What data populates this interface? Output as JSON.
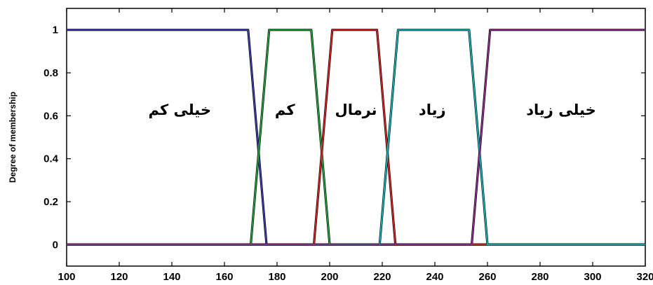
{
  "chart_data": {
    "type": "line",
    "title": "",
    "xlabel": "",
    "ylabel": "Degree of membership",
    "xlim": [
      100,
      320
    ],
    "ylim": [
      -0.1,
      1.1
    ],
    "x_ticks": [
      100,
      120,
      140,
      160,
      180,
      200,
      220,
      240,
      260,
      280,
      300,
      320
    ],
    "y_ticks": [
      0,
      0.2,
      0.4,
      0.6,
      0.8,
      1
    ],
    "tick_labels_x": [
      "100",
      "120",
      "140",
      "160",
      "180",
      "200",
      "220",
      "240",
      "260",
      "280",
      "300",
      "320"
    ],
    "tick_labels_y": [
      "0",
      "0.2",
      "0.4",
      "0.6",
      "0.8",
      "1"
    ],
    "grid": false,
    "series": [
      {
        "color": "#3a3aa6",
        "x": [
          100,
          169,
          176,
          320
        ],
        "y": [
          1,
          1,
          0,
          0
        ]
      },
      {
        "color": "#1f9e3a",
        "x": [
          100,
          170,
          177,
          193,
          200,
          320
        ],
        "y": [
          0,
          0,
          1,
          1,
          0,
          0
        ]
      },
      {
        "color": "#d42020",
        "x": [
          100,
          194,
          201,
          218,
          225,
          320
        ],
        "y": [
          0,
          0,
          1,
          1,
          0,
          0
        ]
      },
      {
        "color": "#10b0b0",
        "x": [
          100,
          219,
          226,
          253,
          260,
          320
        ],
        "y": [
          0,
          0,
          1,
          1,
          0,
          0
        ]
      },
      {
        "color": "#8a2d8a",
        "x": [
          100,
          254,
          261,
          320
        ],
        "y": [
          0,
          0,
          1,
          1
        ]
      }
    ],
    "annotations": [
      {
        "text": "خیلی کم",
        "x": 143,
        "y": 0.63
      },
      {
        "text": "کم",
        "x": 183,
        "y": 0.63
      },
      {
        "text": "نرمال",
        "x": 210,
        "y": 0.63
      },
      {
        "text": "زیاد",
        "x": 239,
        "y": 0.63
      },
      {
        "text": "خیلی زیاد",
        "x": 288,
        "y": 0.63
      }
    ]
  }
}
